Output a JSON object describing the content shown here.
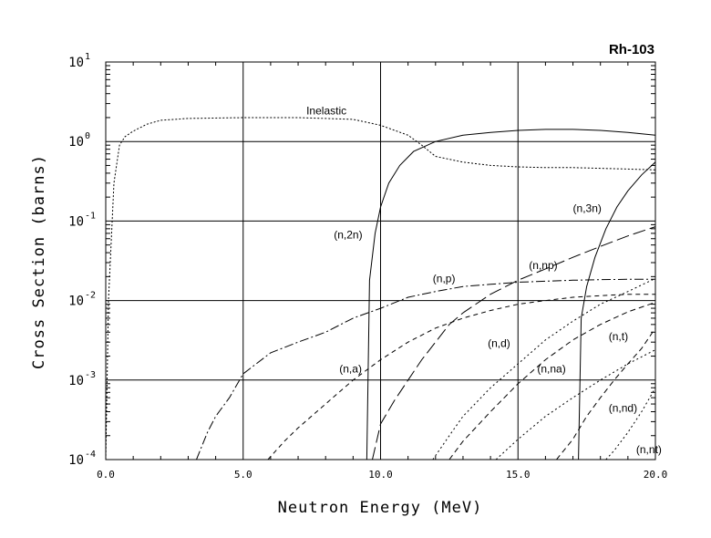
{
  "chart_data": {
    "type": "line",
    "title": "Rh-103",
    "xlabel": "Neutron Energy (MeV)",
    "ylabel": "Cross Section (barns)",
    "xlim": [
      0,
      20
    ],
    "ylim": [
      0.0001,
      10
    ],
    "yscale": "log",
    "grid": true,
    "x_ticks": [
      0,
      5,
      10,
      15,
      20
    ],
    "x_tick_labels": [
      "0.0",
      "5.0",
      "10.0",
      "15.0",
      "20.0"
    ],
    "y_ticks": [
      {
        "value": 10,
        "base": "10",
        "exp": "1"
      },
      {
        "value": 1,
        "base": "10",
        "exp": "0"
      },
      {
        "value": 0.1,
        "base": "10",
        "exp": "-1"
      },
      {
        "value": 0.01,
        "base": "10",
        "exp": "-2"
      },
      {
        "value": 0.001,
        "base": "10",
        "exp": "-3"
      },
      {
        "value": 0.0001,
        "base": "10",
        "exp": "-4"
      }
    ],
    "series": [
      {
        "name": "Inelastic",
        "dash": "2,2",
        "x": [
          0.0,
          0.1,
          0.3,
          0.5,
          0.7,
          1.0,
          1.5,
          2.0,
          3.0,
          5.0,
          7.0,
          8.0,
          9.0,
          10.0,
          11.0,
          11.5,
          12.0,
          13.0,
          14.0,
          15.0,
          16.0,
          17.0,
          18.0,
          19.0,
          20.0
        ],
        "y": [
          0.0001,
          0.01,
          0.3,
          0.9,
          1.15,
          1.35,
          1.65,
          1.85,
          1.95,
          2.0,
          2.0,
          1.95,
          1.9,
          1.6,
          1.2,
          0.9,
          0.65,
          0.55,
          0.5,
          0.48,
          0.47,
          0.47,
          0.46,
          0.45,
          0.44
        ]
      },
      {
        "name": "(n,2n)",
        "dash": "",
        "x": [
          9.5,
          9.6,
          9.8,
          10.0,
          10.3,
          10.7,
          11.2,
          12.0,
          13.0,
          14.0,
          15.0,
          16.0,
          17.0,
          18.0,
          19.0,
          20.0
        ],
        "y": [
          0.0001,
          0.018,
          0.07,
          0.15,
          0.3,
          0.5,
          0.75,
          1.0,
          1.2,
          1.3,
          1.38,
          1.42,
          1.42,
          1.38,
          1.3,
          1.2
        ]
      },
      {
        "name": "(n,3n)",
        "dash": "",
        "x": [
          17.2,
          17.3,
          17.5,
          17.8,
          18.2,
          18.6,
          19.0,
          19.5,
          20.0
        ],
        "y": [
          0.0001,
          0.006,
          0.015,
          0.035,
          0.08,
          0.15,
          0.24,
          0.38,
          0.55
        ]
      },
      {
        "name": "(n,p)",
        "dash": "10,3,2,3",
        "x": [
          3.3,
          3.7,
          4.0,
          4.5,
          5.0,
          6.0,
          7.0,
          8.0,
          9.0,
          10.0,
          11.0,
          12.0,
          13.0,
          14.0,
          15.0,
          16.0,
          17.0,
          18.0,
          19.0,
          20.0
        ],
        "y": [
          0.0001,
          0.00022,
          0.00035,
          0.0006,
          0.0012,
          0.0022,
          0.003,
          0.004,
          0.006,
          0.008,
          0.011,
          0.013,
          0.015,
          0.016,
          0.017,
          0.0175,
          0.018,
          0.0183,
          0.0185,
          0.0185
        ]
      },
      {
        "name": "(n,a)",
        "dash": "5,4",
        "x": [
          5.9,
          6.5,
          7.0,
          8.0,
          9.0,
          10.0,
          11.0,
          12.0,
          13.0,
          14.0,
          15.0,
          16.0,
          17.0,
          18.0,
          19.0,
          20.0
        ],
        "y": [
          0.0001,
          0.00017,
          0.00025,
          0.0005,
          0.001,
          0.0018,
          0.003,
          0.0045,
          0.006,
          0.0075,
          0.009,
          0.01,
          0.011,
          0.0115,
          0.012,
          0.012
        ]
      },
      {
        "name": "(n,np)",
        "dash": "14,5",
        "x": [
          9.7,
          10.0,
          10.5,
          11.0,
          11.5,
          12.0,
          12.5,
          13.0,
          14.0,
          15.0,
          16.0,
          17.0,
          18.0,
          19.0,
          20.0
        ],
        "y": [
          0.0001,
          0.00028,
          0.00055,
          0.001,
          0.0018,
          0.003,
          0.005,
          0.007,
          0.012,
          0.018,
          0.025,
          0.035,
          0.048,
          0.065,
          0.085
        ]
      },
      {
        "name": "(n,d)",
        "dash": "2,3",
        "x": [
          11.9,
          12.5,
          13.0,
          14.0,
          15.0,
          16.0,
          17.0,
          18.0,
          19.0,
          20.0
        ],
        "y": [
          0.0001,
          0.0002,
          0.00035,
          0.0008,
          0.0016,
          0.0032,
          0.0055,
          0.009,
          0.013,
          0.019
        ]
      },
      {
        "name": "(n,na)",
        "dash": "6,4",
        "x": [
          12.5,
          13.0,
          14.0,
          15.0,
          16.0,
          17.0,
          18.0,
          19.0,
          20.0
        ],
        "y": [
          0.0001,
          0.00017,
          0.0004,
          0.0009,
          0.0018,
          0.0032,
          0.005,
          0.0072,
          0.0095
        ]
      },
      {
        "name": "(n,t)",
        "dash": "2,3",
        "x": [
          14.2,
          15.0,
          16.0,
          17.0,
          18.0,
          19.0,
          20.0
        ],
        "y": [
          0.0001,
          0.00018,
          0.00035,
          0.0006,
          0.001,
          0.0016,
          0.0024
        ]
      },
      {
        "name": "(n,nd)",
        "dash": "6,4",
        "x": [
          16.4,
          17.0,
          17.5,
          18.0,
          18.5,
          19.0,
          19.5,
          20.0
        ],
        "y": [
          0.0001,
          0.00018,
          0.00035,
          0.0006,
          0.001,
          0.0016,
          0.0025,
          0.0045
        ]
      },
      {
        "name": "(n,nt)",
        "dash": "2,3",
        "x": [
          18.2,
          18.5,
          19.0,
          19.5,
          20.0
        ],
        "y": [
          0.0001,
          0.00013,
          0.00022,
          0.0004,
          0.0008
        ]
      }
    ],
    "annotations": [
      {
        "text": "Inelastic",
        "x": 7.3,
        "y": 2.2
      },
      {
        "text": "(n,2n)",
        "x": 8.3,
        "y": 0.06
      },
      {
        "text": "(n,3n)",
        "x": 17.0,
        "y": 0.13
      },
      {
        "text": "(n,np)",
        "x": 15.4,
        "y": 0.025
      },
      {
        "text": "(n,p)",
        "x": 11.9,
        "y": 0.017
      },
      {
        "text": "(n,a)",
        "x": 8.5,
        "y": 0.00125
      },
      {
        "text": "(n,d)",
        "x": 13.9,
        "y": 0.0026
      },
      {
        "text": "(n,na)",
        "x": 15.7,
        "y": 0.00125
      },
      {
        "text": "(n,t)",
        "x": 18.3,
        "y": 0.0032
      },
      {
        "text": "(n,nd)",
        "x": 18.3,
        "y": 0.0004
      },
      {
        "text": "(n,nt)",
        "x": 19.3,
        "y": 0.00012
      }
    ]
  }
}
